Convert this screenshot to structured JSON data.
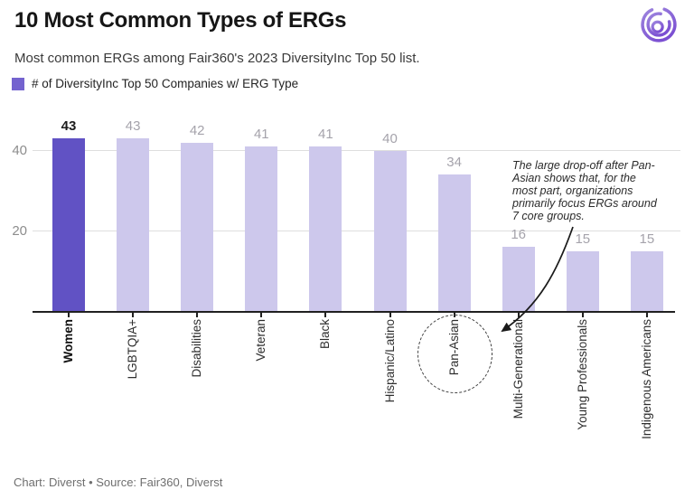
{
  "header": {
    "title": "10 Most Common Types of ERGs",
    "subtitle": "Most common ERGs among Fair360's 2023 DiversityInc Top 50 list.",
    "logo_name": "diverst-logo"
  },
  "legend": {
    "label": "# of DiversityInc Top 50 Companies w/ ERG Type",
    "swatch_color": "#7463cf"
  },
  "chart_data": {
    "type": "bar",
    "title": "10 Most Common Types of ERGs",
    "series_label": "# of DiversityInc Top 50 Companies w/ ERG Type",
    "categories": [
      "Women",
      "LGBTQIA+",
      "Disabilities",
      "Veteran",
      "Black",
      "Hispanic/Latino",
      "Pan-Asian",
      "Multi-Generational",
      "Young Professionals",
      "Indigenous Americans"
    ],
    "values": [
      43,
      43,
      42,
      41,
      41,
      40,
      34,
      16,
      15,
      15
    ],
    "yticks": [
      20,
      40
    ],
    "ylim": [
      0,
      45
    ],
    "grid": true,
    "legend_position": "top-left",
    "highlight_index": 0,
    "highlight_color": "#6152c4",
    "bar_color": "#cdc8ec",
    "gridline_color": "#dedede",
    "axis_color": "#202020",
    "annotation": "The large drop-off after Pan-Asian shows that, for the most part, organizations primarily focus ERGs around 7 core groups.",
    "annotation_lines": [
      "The large drop-off after Pan-",
      "Asian shows that, for the",
      "most part, organizations",
      "primarily focus ERGs around",
      "7 core groups."
    ],
    "annotation_target": "Pan-Asian"
  },
  "footer": {
    "text": "Chart: Diverst • Source: Fair360, Diverst"
  }
}
